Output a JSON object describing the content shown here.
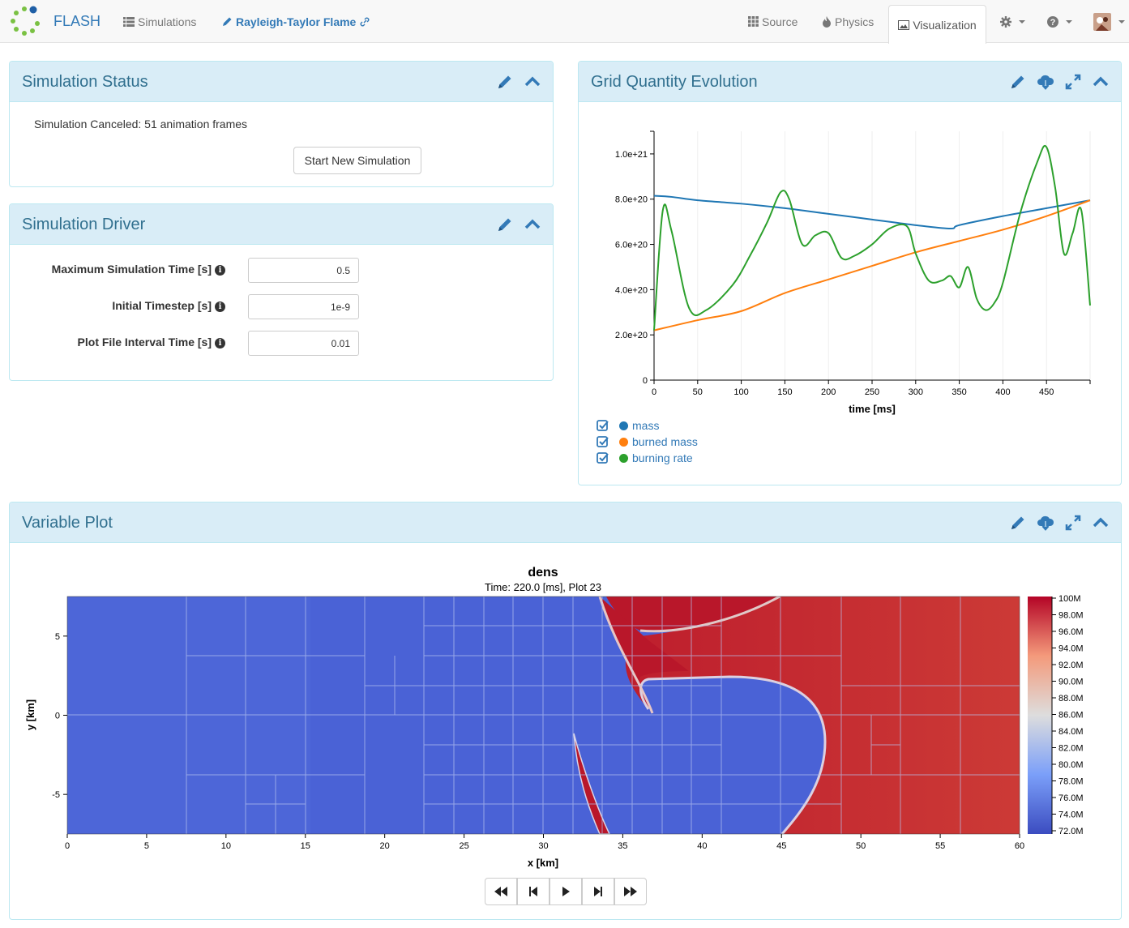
{
  "navbar": {
    "brand": "FLASH",
    "simulations": "Simulations",
    "simulation_name": "Rayleigh-Taylor Flame",
    "source": "Source",
    "physics": "Physics",
    "visualization": "Visualization"
  },
  "status_panel": {
    "title": "Simulation Status",
    "message": "Simulation Canceled: 51 animation frames",
    "button": "Start New Simulation"
  },
  "driver_panel": {
    "title": "Simulation Driver",
    "fields": [
      {
        "label": "Maximum Simulation Time [s]",
        "value": "0.5"
      },
      {
        "label": "Initial Timestep [s]",
        "value": "1e-9"
      },
      {
        "label": "Plot File Interval Time [s]",
        "value": "0.01"
      }
    ]
  },
  "evolution_panel": {
    "title": "Grid Quantity Evolution",
    "legend": [
      {
        "label": "mass",
        "color": "#1f77b4"
      },
      {
        "label": "burned mass",
        "color": "#ff7f0e"
      },
      {
        "label": "burning rate",
        "color": "#2ca02c"
      }
    ]
  },
  "chart_data": [
    {
      "type": "line",
      "xlabel": "time [ms]",
      "ylabel": "",
      "xlim": [
        0,
        500
      ],
      "ylim": [
        0,
        1.1e+21
      ],
      "xticks": [
        0,
        50,
        100,
        150,
        200,
        250,
        300,
        350,
        400,
        450
      ],
      "yticks": [
        0,
        2e+20,
        4e+20,
        6e+20,
        8e+20,
        1e+21
      ],
      "ytick_labels": [
        "0",
        "2.0e+20",
        "4.0e+20",
        "6.0e+20",
        "8.0e+20",
        "1.0e+21"
      ],
      "series": [
        {
          "name": "mass",
          "color": "#1f77b4",
          "x": [
            0,
            20,
            50,
            100,
            150,
            200,
            250,
            300,
            340,
            350,
            400,
            450,
            500
          ],
          "y": [
            8.15e+20,
            8.1e+20,
            7.95e+20,
            7.8e+20,
            7.6e+20,
            7.35e+20,
            7.1e+20,
            6.85e+20,
            6.7e+20,
            6.85e+20,
            7.25e+20,
            7.6e+20,
            7.95e+20
          ]
        },
        {
          "name": "burned mass",
          "color": "#ff7f0e",
          "x": [
            0,
            50,
            100,
            150,
            200,
            250,
            300,
            350,
            400,
            450,
            500
          ],
          "y": [
            2.2e+20,
            2.65e+20,
            3.05e+20,
            3.85e+20,
            4.45e+20,
            5.05e+20,
            5.65e+20,
            6.15e+20,
            6.65e+20,
            7.25e+20,
            7.95e+20
          ]
        },
        {
          "name": "burning rate",
          "color": "#2ca02c",
          "x": [
            0,
            10,
            20,
            40,
            60,
            90,
            110,
            130,
            145,
            155,
            170,
            185,
            200,
            215,
            230,
            250,
            270,
            290,
            300,
            315,
            330,
            340,
            350,
            360,
            370,
            380,
            390,
            400,
            420,
            440,
            450,
            460,
            470,
            480,
            490,
            500
          ],
          "y": [
            2.2e+20,
            7.5e+20,
            6.6e+20,
            3.2e+20,
            3.1e+20,
            4.2e+20,
            5.5e+20,
            7e+20,
            8.3e+20,
            8e+20,
            6e+20,
            6.4e+20,
            6.5e+20,
            5.4e+20,
            5.5e+20,
            6e+20,
            6.7e+20,
            6.8e+20,
            5.6e+20,
            4.4e+20,
            4.4e+20,
            4.6e+20,
            4.1e+20,
            5e+20,
            3.6e+20,
            3.1e+20,
            3.4e+20,
            4.3e+20,
            7.4e+20,
            9.7e+20,
            1.03e+21,
            8.5e+20,
            5.6e+20,
            6.5e+20,
            7.5e+20,
            3.3e+20
          ]
        }
      ]
    },
    {
      "type": "heatmap",
      "title": "dens",
      "subtitle": "Time: 220.0 [ms], Plot 23",
      "xlabel": "x [km]",
      "ylabel": "y [km]",
      "xlim": [
        0,
        60
      ],
      "ylim": [
        -7.5,
        7.5
      ],
      "xticks": [
        0,
        5,
        10,
        15,
        20,
        25,
        30,
        35,
        40,
        45,
        50,
        55,
        60
      ],
      "yticks": [
        -5,
        0,
        5
      ],
      "colorbar": {
        "range": [
          72,
          100
        ],
        "labels": [
          "100M",
          "98.0M",
          "96.0M",
          "94.0M",
          "92.0M",
          "90.0M",
          "88.0M",
          "86.0M",
          "84.0M",
          "82.0M",
          "80.0M",
          "78.0M",
          "76.0M",
          "74.0M",
          "72.0M"
        ]
      }
    }
  ],
  "variable_panel": {
    "title": "Variable Plot"
  }
}
